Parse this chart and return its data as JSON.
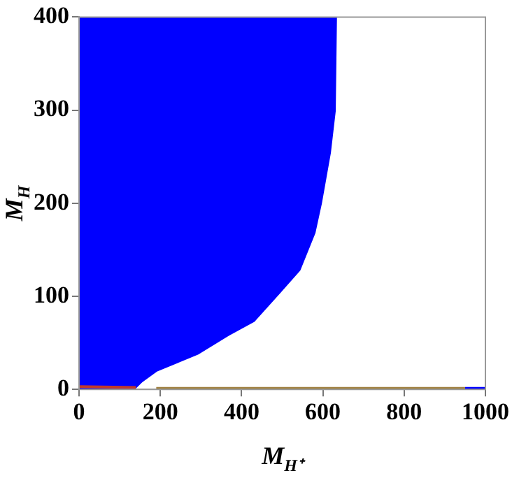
{
  "chart_data": {
    "type": "area",
    "xlabel": "M$_{H⁺}$",
    "ylabel": "M$_{H}$",
    "series": [
      {
        "color": "#0000ff",
        "x": [
          0,
          0,
          135,
          154,
          192,
          292,
          367,
          430,
          492,
          543,
          580,
          596,
          618,
          630,
          633
        ],
        "values": [
          400,
          0,
          0,
          8,
          20,
          38,
          58,
          73,
          103,
          128,
          168,
          200,
          254,
          299,
          400
        ]
      },
      {
        "type": "line",
        "color": "#c0392b",
        "x": [
          0,
          140
        ],
        "values": [
          3,
          2
        ]
      },
      {
        "type": "line",
        "color": "#a08040",
        "x": [
          190,
          950
        ],
        "values": [
          1,
          1
        ]
      },
      {
        "type": "line",
        "color": "#0000ff",
        "x": [
          950,
          1000
        ],
        "values": [
          1,
          1
        ]
      }
    ],
    "xlim": [
      0,
      1000
    ],
    "ylim": [
      0,
      400
    ],
    "xticks": [
      0,
      200,
      400,
      600,
      800,
      1000
    ],
    "yticks": [
      0,
      100,
      200,
      300,
      400
    ],
    "grid": false,
    "legend": false,
    "marker": "none",
    "line_style": "solid"
  }
}
